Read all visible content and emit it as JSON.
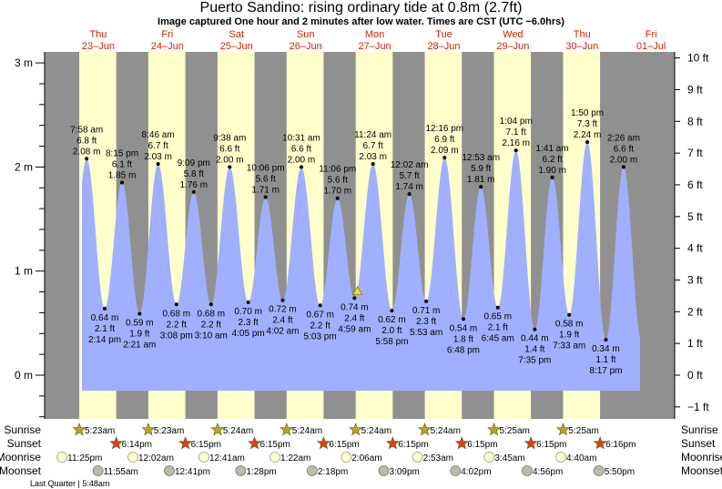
{
  "title": "Puerto Sandino: rising  ordinary tide at 0.8m (2.7ft)",
  "subtitle": "Image captured One hour and 2 minutes after low water. Times are CST (UTC −6.0hrs)",
  "colors": {
    "night": "#909090",
    "day": "#ffffcc",
    "water": "#a0b0ff",
    "day_label": "#cc2200",
    "sunrise": "#b0a830",
    "sunset": "#d84020",
    "moonrise": "#ffffcc",
    "moonset": "#bbbbaa",
    "marker": "#e8e040"
  },
  "chart_data": {
    "type": "area",
    "left_axis": {
      "unit": "m",
      "range": [
        -0.5,
        3.1
      ],
      "ticks": [
        {
          "v": 3,
          "label": "3 m"
        },
        {
          "v": 2,
          "label": "2 m"
        },
        {
          "v": 1,
          "label": "1 m"
        },
        {
          "v": 0,
          "label": "0 m"
        }
      ]
    },
    "right_axis": {
      "unit": "ft",
      "ticks": [
        {
          "v": 10,
          "label": "10 ft"
        },
        {
          "v": 9,
          "label": "9 ft"
        },
        {
          "v": 8,
          "label": "8 ft"
        },
        {
          "v": 7,
          "label": "7 ft"
        },
        {
          "v": 6,
          "label": "6 ft"
        },
        {
          "v": 5,
          "label": "5 ft"
        },
        {
          "v": 4,
          "label": "4 ft"
        },
        {
          "v": 3,
          "label": "3 ft"
        },
        {
          "v": 2,
          "label": "2 ft"
        },
        {
          "v": 1,
          "label": "1 ft"
        },
        {
          "v": 0,
          "label": "0 ft"
        },
        {
          "v": -1,
          "label": "−1 ft"
        }
      ]
    },
    "days": [
      {
        "day": "Thu",
        "date": "23–Jun"
      },
      {
        "day": "Fri",
        "date": "24–Jun"
      },
      {
        "day": "Sat",
        "date": "25–Jun"
      },
      {
        "day": "Sun",
        "date": "26–Jun"
      },
      {
        "day": "Mon",
        "date": "27–Jun"
      },
      {
        "day": "Tue",
        "date": "28–Jun"
      },
      {
        "day": "Wed",
        "date": "29–Jun"
      },
      {
        "day": "Thu",
        "date": "30–Jun"
      },
      {
        "day": "Fri",
        "date": "01–Jul"
      }
    ],
    "tides": [
      {
        "day": 0,
        "time": "7:58 am",
        "h": 7.967,
        "type": "high",
        "m": "2.08",
        "ft": "6.8"
      },
      {
        "day": 0,
        "time": "2:14 pm",
        "h": 14.233,
        "type": "low",
        "m": "0.64",
        "ft": "2.1"
      },
      {
        "day": 0,
        "time": "8:15 pm",
        "h": 20.25,
        "type": "high",
        "m": "1.85",
        "ft": "6.1"
      },
      {
        "day": 1,
        "time": "2:21 am",
        "h": 2.35,
        "type": "low",
        "m": "0.59",
        "ft": "1.9"
      },
      {
        "day": 1,
        "time": "8:46 am",
        "h": 8.767,
        "type": "high",
        "m": "2.03",
        "ft": "6.7"
      },
      {
        "day": 1,
        "time": "3:08 pm",
        "h": 15.133,
        "type": "low",
        "m": "0.68",
        "ft": "2.2"
      },
      {
        "day": 1,
        "time": "9:09 pm",
        "h": 21.15,
        "type": "high",
        "m": "1.76",
        "ft": "5.8"
      },
      {
        "day": 2,
        "time": "3:10 am",
        "h": 3.167,
        "type": "low",
        "m": "0.68",
        "ft": "2.2"
      },
      {
        "day": 2,
        "time": "9:38 am",
        "h": 9.633,
        "type": "high",
        "m": "2.00",
        "ft": "6.6"
      },
      {
        "day": 2,
        "time": "4:05 pm",
        "h": 16.083,
        "type": "low",
        "m": "0.70",
        "ft": "2.3"
      },
      {
        "day": 2,
        "time": "10:06 pm",
        "h": 22.1,
        "type": "high",
        "m": "1.71",
        "ft": "5.6"
      },
      {
        "day": 3,
        "time": "4:02 am",
        "h": 4.033,
        "type": "low",
        "m": "0.72",
        "ft": "2.4"
      },
      {
        "day": 3,
        "time": "10:31 am",
        "h": 10.517,
        "type": "high",
        "m": "2.00",
        "ft": "6.6"
      },
      {
        "day": 3,
        "time": "5:03 pm",
        "h": 17.05,
        "type": "low",
        "m": "0.67",
        "ft": "2.2"
      },
      {
        "day": 3,
        "time": "11:06 pm",
        "h": 23.1,
        "type": "high",
        "m": "1.70",
        "ft": "5.6"
      },
      {
        "day": 4,
        "time": "4:59 am",
        "h": 4.983,
        "type": "low",
        "m": "0.74",
        "ft": "2.4"
      },
      {
        "day": 4,
        "time": "11:24 am",
        "h": 11.4,
        "type": "high",
        "m": "2.03",
        "ft": "6.7"
      },
      {
        "day": 4,
        "time": "5:58 pm",
        "h": 17.967,
        "type": "low",
        "m": "0.62",
        "ft": "2.0"
      },
      {
        "day": 5,
        "time": "12:02 am",
        "h": 0.033,
        "type": "high",
        "m": "1.74",
        "ft": "5.7"
      },
      {
        "day": 5,
        "time": "5:53 am",
        "h": 5.883,
        "type": "low",
        "m": "0.71",
        "ft": "2.3"
      },
      {
        "day": 5,
        "time": "12:16 pm",
        "h": 12.267,
        "type": "high",
        "m": "2.09",
        "ft": "6.9"
      },
      {
        "day": 5,
        "time": "6:48 pm",
        "h": 18.8,
        "type": "low",
        "m": "0.54",
        "ft": "1.8"
      },
      {
        "day": 6,
        "time": "12:53 am",
        "h": 0.883,
        "type": "high",
        "m": "1.81",
        "ft": "5.9"
      },
      {
        "day": 6,
        "time": "6:45 am",
        "h": 6.75,
        "type": "low",
        "m": "0.65",
        "ft": "2.1"
      },
      {
        "day": 6,
        "time": "1:04 pm",
        "h": 13.067,
        "type": "high",
        "m": "2.16",
        "ft": "7.1"
      },
      {
        "day": 6,
        "time": "7:35 pm",
        "h": 19.583,
        "type": "low",
        "m": "0.44",
        "ft": "1.4"
      },
      {
        "day": 7,
        "time": "1:41 am",
        "h": 1.683,
        "type": "high",
        "m": "1.90",
        "ft": "6.2"
      },
      {
        "day": 7,
        "time": "7:33 am",
        "h": 7.55,
        "type": "low",
        "m": "0.58",
        "ft": "1.9"
      },
      {
        "day": 7,
        "time": "1:50 pm",
        "h": 13.833,
        "type": "high",
        "m": "2.24",
        "ft": "7.3"
      },
      {
        "day": 7,
        "time": "8:17 pm",
        "h": 20.283,
        "type": "low",
        "m": "0.34",
        "ft": "1.1"
      },
      {
        "day": 8,
        "time": "2:26 am",
        "h": 2.433,
        "type": "high",
        "m": "2.00",
        "ft": "6.6"
      }
    ],
    "current": {
      "day": 4,
      "h": 6.03,
      "level_m": 0.8,
      "level_ft": 2.7,
      "state": "rising"
    }
  },
  "rows": {
    "labels": {
      "sunrise": "Sunrise",
      "sunset": "Sunset",
      "moonrise": "Moonrise",
      "moonset": "Moonset"
    },
    "sunrise": [
      {
        "day": 0,
        "h": 5.383,
        "t": "5:23am"
      },
      {
        "day": 1,
        "h": 5.383,
        "t": "5:23am"
      },
      {
        "day": 2,
        "h": 5.4,
        "t": "5:24am"
      },
      {
        "day": 3,
        "h": 5.4,
        "t": "5:24am"
      },
      {
        "day": 4,
        "h": 5.4,
        "t": "5:24am"
      },
      {
        "day": 5,
        "h": 5.4,
        "t": "5:24am"
      },
      {
        "day": 6,
        "h": 5.417,
        "t": "5:25am"
      },
      {
        "day": 7,
        "h": 5.417,
        "t": "5:25am"
      }
    ],
    "sunset": [
      {
        "day": 0,
        "h": 18.233,
        "t": "6:14pm"
      },
      {
        "day": 1,
        "h": 18.25,
        "t": "6:15pm"
      },
      {
        "day": 2,
        "h": 18.25,
        "t": "6:15pm"
      },
      {
        "day": 3,
        "h": 18.25,
        "t": "6:15pm"
      },
      {
        "day": 4,
        "h": 18.25,
        "t": "6:15pm"
      },
      {
        "day": 5,
        "h": 18.25,
        "t": "6:15pm"
      },
      {
        "day": 6,
        "h": 18.25,
        "t": "6:15pm"
      },
      {
        "day": 7,
        "h": 18.267,
        "t": "6:16pm"
      }
    ],
    "moonrise": [
      {
        "day": -1,
        "h": 23.417,
        "t": "11:25pm"
      },
      {
        "day": 1,
        "h": 0.033,
        "t": "12:02am"
      },
      {
        "day": 2,
        "h": 0.683,
        "t": "12:41am"
      },
      {
        "day": 3,
        "h": 1.367,
        "t": "1:22am"
      },
      {
        "day": 4,
        "h": 2.1,
        "t": "2:06am"
      },
      {
        "day": 5,
        "h": 2.883,
        "t": "2:53am"
      },
      {
        "day": 6,
        "h": 3.75,
        "t": "3:45am"
      },
      {
        "day": 7,
        "h": 4.667,
        "t": "4:40am"
      }
    ],
    "moonset": [
      {
        "day": 0,
        "h": 11.917,
        "t": "11:55am"
      },
      {
        "day": 1,
        "h": 12.683,
        "t": "12:41pm"
      },
      {
        "day": 2,
        "h": 13.467,
        "t": "1:28pm"
      },
      {
        "day": 3,
        "h": 14.3,
        "t": "2:18pm"
      },
      {
        "day": 4,
        "h": 15.15,
        "t": "3:09pm"
      },
      {
        "day": 5,
        "h": 16.033,
        "t": "4:02pm"
      },
      {
        "day": 6,
        "h": 16.933,
        "t": "4:56pm"
      },
      {
        "day": 7,
        "h": 17.833,
        "t": "5:50pm"
      }
    ],
    "moon_phase": "Last Quarter | 5:48am"
  }
}
